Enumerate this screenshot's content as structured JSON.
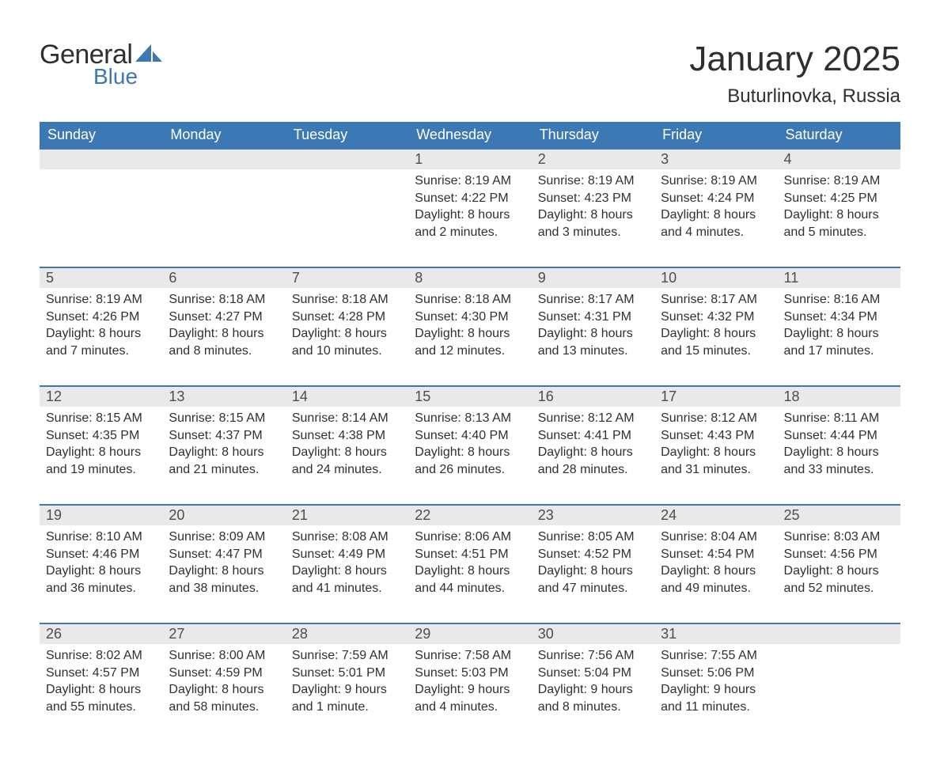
{
  "brand": {
    "word1": "General",
    "word2": "Blue",
    "color_general": "#2f2f2f",
    "color_blue": "#3c78b4"
  },
  "title": "January 2025",
  "location": "Buturlinovka, Russia",
  "colors": {
    "header_bg": "#3c78b4",
    "header_text": "#ffffff",
    "daynum_bg": "#e9e9e9",
    "daynum_border": "#3c78b4",
    "body_text": "#303030",
    "page_bg": "#ffffff"
  },
  "fonts": {
    "title_size_pt": 33,
    "location_size_pt": 18,
    "day_header_size_pt": 14,
    "body_size_pt": 12
  },
  "day_headers": [
    "Sunday",
    "Monday",
    "Tuesday",
    "Wednesday",
    "Thursday",
    "Friday",
    "Saturday"
  ],
  "weeks": [
    [
      null,
      null,
      null,
      {
        "n": "1",
        "sunrise": "8:19 AM",
        "sunset": "4:22 PM",
        "daylight": "8 hours and 2 minutes."
      },
      {
        "n": "2",
        "sunrise": "8:19 AM",
        "sunset": "4:23 PM",
        "daylight": "8 hours and 3 minutes."
      },
      {
        "n": "3",
        "sunrise": "8:19 AM",
        "sunset": "4:24 PM",
        "daylight": "8 hours and 4 minutes."
      },
      {
        "n": "4",
        "sunrise": "8:19 AM",
        "sunset": "4:25 PM",
        "daylight": "8 hours and 5 minutes."
      }
    ],
    [
      {
        "n": "5",
        "sunrise": "8:19 AM",
        "sunset": "4:26 PM",
        "daylight": "8 hours and 7 minutes."
      },
      {
        "n": "6",
        "sunrise": "8:18 AM",
        "sunset": "4:27 PM",
        "daylight": "8 hours and 8 minutes."
      },
      {
        "n": "7",
        "sunrise": "8:18 AM",
        "sunset": "4:28 PM",
        "daylight": "8 hours and 10 minutes."
      },
      {
        "n": "8",
        "sunrise": "8:18 AM",
        "sunset": "4:30 PM",
        "daylight": "8 hours and 12 minutes."
      },
      {
        "n": "9",
        "sunrise": "8:17 AM",
        "sunset": "4:31 PM",
        "daylight": "8 hours and 13 minutes."
      },
      {
        "n": "10",
        "sunrise": "8:17 AM",
        "sunset": "4:32 PM",
        "daylight": "8 hours and 15 minutes."
      },
      {
        "n": "11",
        "sunrise": "8:16 AM",
        "sunset": "4:34 PM",
        "daylight": "8 hours and 17 minutes."
      }
    ],
    [
      {
        "n": "12",
        "sunrise": "8:15 AM",
        "sunset": "4:35 PM",
        "daylight": "8 hours and 19 minutes."
      },
      {
        "n": "13",
        "sunrise": "8:15 AM",
        "sunset": "4:37 PM",
        "daylight": "8 hours and 21 minutes."
      },
      {
        "n": "14",
        "sunrise": "8:14 AM",
        "sunset": "4:38 PM",
        "daylight": "8 hours and 24 minutes."
      },
      {
        "n": "15",
        "sunrise": "8:13 AM",
        "sunset": "4:40 PM",
        "daylight": "8 hours and 26 minutes."
      },
      {
        "n": "16",
        "sunrise": "8:12 AM",
        "sunset": "4:41 PM",
        "daylight": "8 hours and 28 minutes."
      },
      {
        "n": "17",
        "sunrise": "8:12 AM",
        "sunset": "4:43 PM",
        "daylight": "8 hours and 31 minutes."
      },
      {
        "n": "18",
        "sunrise": "8:11 AM",
        "sunset": "4:44 PM",
        "daylight": "8 hours and 33 minutes."
      }
    ],
    [
      {
        "n": "19",
        "sunrise": "8:10 AM",
        "sunset": "4:46 PM",
        "daylight": "8 hours and 36 minutes."
      },
      {
        "n": "20",
        "sunrise": "8:09 AM",
        "sunset": "4:47 PM",
        "daylight": "8 hours and 38 minutes."
      },
      {
        "n": "21",
        "sunrise": "8:08 AM",
        "sunset": "4:49 PM",
        "daylight": "8 hours and 41 minutes."
      },
      {
        "n": "22",
        "sunrise": "8:06 AM",
        "sunset": "4:51 PM",
        "daylight": "8 hours and 44 minutes."
      },
      {
        "n": "23",
        "sunrise": "8:05 AM",
        "sunset": "4:52 PM",
        "daylight": "8 hours and 47 minutes."
      },
      {
        "n": "24",
        "sunrise": "8:04 AM",
        "sunset": "4:54 PM",
        "daylight": "8 hours and 49 minutes."
      },
      {
        "n": "25",
        "sunrise": "8:03 AM",
        "sunset": "4:56 PM",
        "daylight": "8 hours and 52 minutes."
      }
    ],
    [
      {
        "n": "26",
        "sunrise": "8:02 AM",
        "sunset": "4:57 PM",
        "daylight": "8 hours and 55 minutes."
      },
      {
        "n": "27",
        "sunrise": "8:00 AM",
        "sunset": "4:59 PM",
        "daylight": "8 hours and 58 minutes."
      },
      {
        "n": "28",
        "sunrise": "7:59 AM",
        "sunset": "5:01 PM",
        "daylight": "9 hours and 1 minute."
      },
      {
        "n": "29",
        "sunrise": "7:58 AM",
        "sunset": "5:03 PM",
        "daylight": "9 hours and 4 minutes."
      },
      {
        "n": "30",
        "sunrise": "7:56 AM",
        "sunset": "5:04 PM",
        "daylight": "9 hours and 8 minutes."
      },
      {
        "n": "31",
        "sunrise": "7:55 AM",
        "sunset": "5:06 PM",
        "daylight": "9 hours and 11 minutes."
      },
      null
    ]
  ],
  "labels": {
    "sunrise_prefix": "Sunrise: ",
    "sunset_prefix": "Sunset: ",
    "daylight_prefix": "Daylight: "
  }
}
